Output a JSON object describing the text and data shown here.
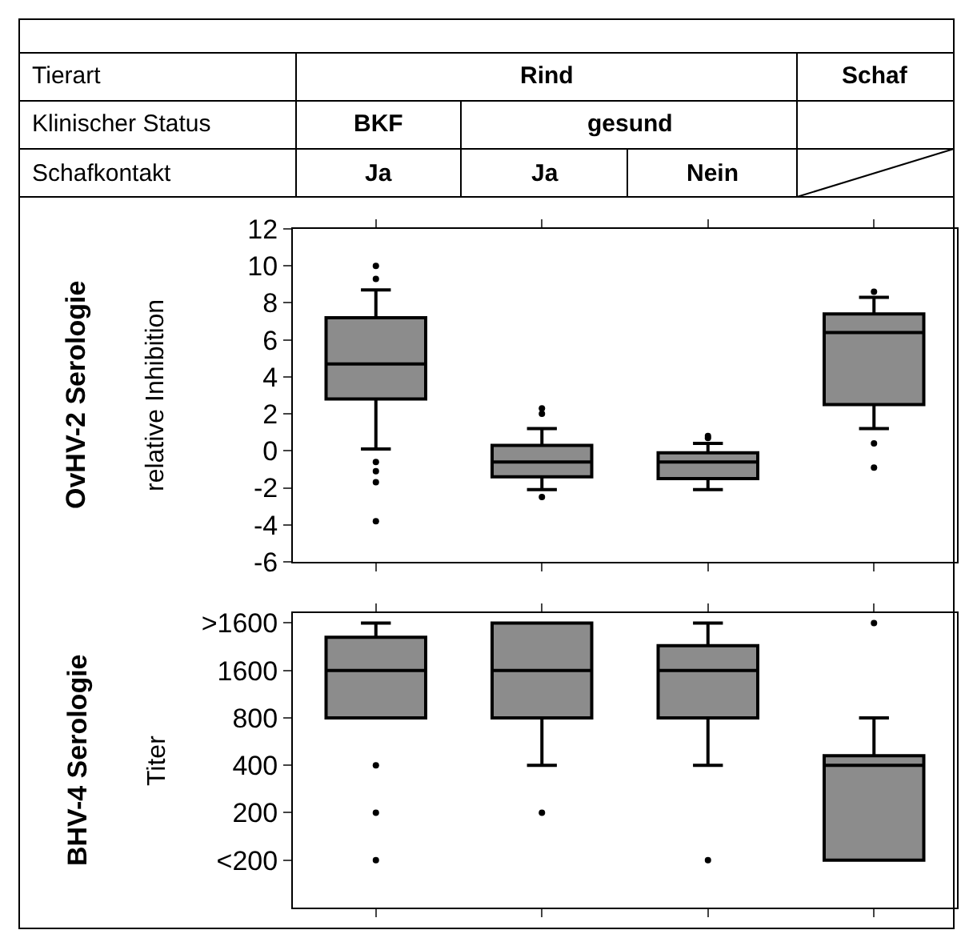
{
  "chart_data": [
    {
      "type": "box",
      "title": "OvHV-2 Serologie",
      "ylabel": "relative Inhibition",
      "categories": [
        null,
        null,
        null,
        null
      ],
      "color": "#8c8c8c",
      "grid": false,
      "ylim": [
        -6,
        12
      ],
      "yticks": [
        -6,
        -4,
        -2,
        0,
        2,
        4,
        6,
        8,
        10,
        12
      ],
      "annotations": [
        "Tierart",
        "Klinischer Status",
        "Schafkontakt",
        "Rind",
        "Schaf",
        "BKF",
        "gesund",
        "Ja",
        "Ja",
        "Nein"
      ],
      "boxes": [
        {
          "low": 0.1,
          "q1": 2.8,
          "median": 4.7,
          "q3": 7.2,
          "high": 8.7,
          "outliers": [
            10.0,
            9.3,
            -0.6,
            -1.1,
            -1.7,
            -3.8
          ]
        },
        {
          "low": -2.1,
          "q1": -1.4,
          "median": -0.6,
          "q3": 0.3,
          "high": 1.2,
          "outliers": [
            2.3,
            2.0,
            -2.5
          ]
        },
        {
          "low": -2.1,
          "q1": -1.5,
          "median": -0.6,
          "q3": -0.1,
          "high": 0.4,
          "outliers": [
            0.8,
            0.7
          ]
        },
        {
          "low": 1.2,
          "q1": 2.5,
          "median": 6.4,
          "q3": 7.4,
          "high": 8.3,
          "outliers": [
            8.6,
            0.4,
            -0.9
          ]
        }
      ]
    },
    {
      "type": "box",
      "title": "BHV-4 Serologie",
      "ylabel": "Titer",
      "categories": [
        null,
        null,
        null,
        null
      ],
      "color": "#8c8c8c",
      "grid": false,
      "log": "y",
      "ylim": [
        50,
        3700
      ],
      "yticks": [
        {
          "value": 100,
          "label": "<200"
        },
        200,
        400,
        800,
        1600,
        {
          "value": 3200,
          "label": ">1600"
        }
      ],
      "boxes": [
        {
          "low": 800,
          "q1": 800,
          "median": 1600,
          "q3": 2600,
          "high": 3200,
          "outliers": [
            400,
            200,
            100
          ]
        },
        {
          "low": 400,
          "q1": 800,
          "median": 1600,
          "q3": 3200,
          "high": 3200,
          "outliers": [
            200
          ]
        },
        {
          "low": 400,
          "q1": 800,
          "median": 1600,
          "q3": 2300,
          "high": 3200,
          "outliers": [
            100
          ]
        },
        {
          "low": 100,
          "q1": 100,
          "median": 400,
          "q3": 460,
          "high": 800,
          "outliers": [
            3200
          ]
        }
      ]
    }
  ]
}
